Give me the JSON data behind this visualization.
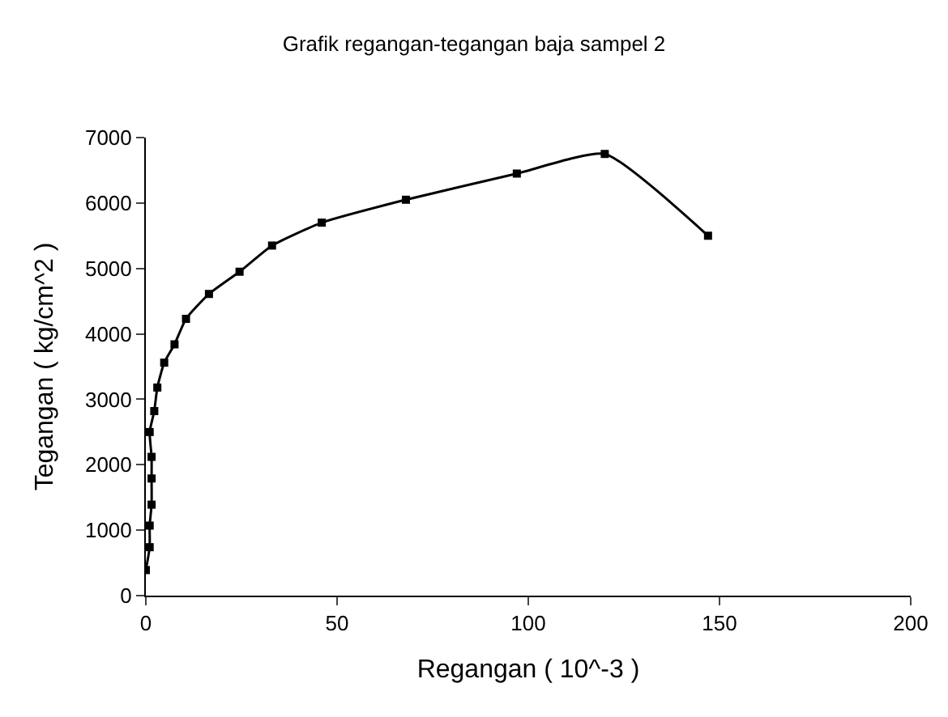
{
  "chart_data": {
    "type": "line",
    "title": "Grafik regangan-tegangan baja sampel 2",
    "xlabel": "Regangan ( 10^-3 )",
    "ylabel": "Tegangan ( kg/cm^2 )",
    "x": [
      0,
      1,
      1,
      1.5,
      1.5,
      1.5,
      1,
      2.2,
      3,
      4.8,
      7.5,
      10.5,
      16.5,
      24.5,
      33,
      46,
      68,
      97,
      120,
      147
    ],
    "series": [
      {
        "color": "#000000",
        "values": [
          390,
          740,
          1070,
          1390,
          1790,
          2120,
          2500,
          2820,
          3180,
          3560,
          3840,
          4230,
          4610,
          4950,
          5350,
          5700,
          6050,
          6450,
          6750,
          5500
        ]
      }
    ],
    "xlim": [
      0,
      200
    ],
    "xticks": [
      0,
      50,
      100,
      150,
      200
    ],
    "ylim": [
      0,
      7000
    ],
    "yticks": [
      0,
      1000,
      2000,
      3000,
      4000,
      5000,
      6000,
      7000
    ],
    "marker": "square",
    "line_style": "solid",
    "legend": false
  }
}
